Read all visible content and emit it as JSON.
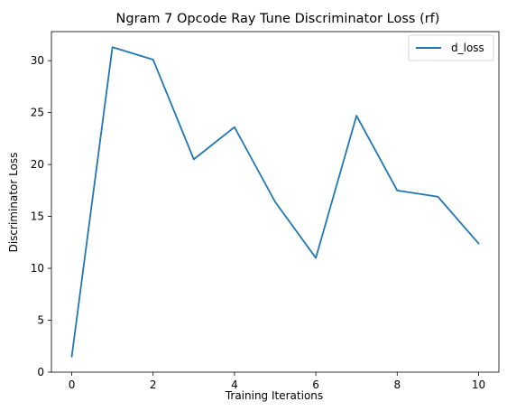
{
  "chart_data": {
    "type": "line",
    "title": "Ngram 7 Opcode Ray Tune Discriminator Loss (rf)",
    "xlabel": "Training Iterations",
    "ylabel": "Discriminator Loss",
    "x": [
      0,
      1,
      2,
      3,
      4,
      5,
      6,
      7,
      8,
      9,
      10
    ],
    "series": [
      {
        "name": "d_loss",
        "color": "#1f77b4",
        "values": [
          1.5,
          31.3,
          30.1,
          20.5,
          23.6,
          16.4,
          11.0,
          24.7,
          17.5,
          16.9,
          12.4
        ]
      }
    ],
    "xlim": [
      -0.5,
      10.5
    ],
    "ylim": [
      0,
      32.8
    ],
    "xticks": [
      0,
      2,
      4,
      6,
      8,
      10
    ],
    "yticks": [
      0,
      5,
      10,
      15,
      20,
      25,
      30
    ],
    "grid": false,
    "legend_position": "top-right"
  }
}
